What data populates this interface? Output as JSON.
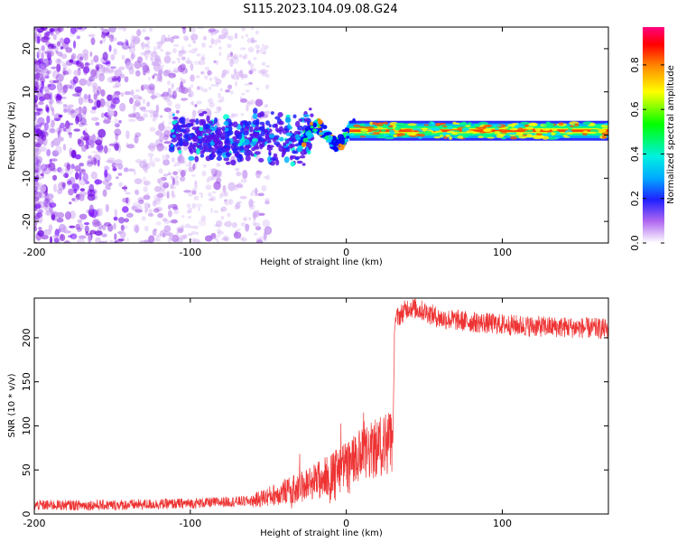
{
  "title": "S115.2023.104.09.08.G24",
  "colors": {
    "snr_line": "#ee3333",
    "axis": "#000000"
  },
  "chart_data": [
    {
      "type": "heatmap",
      "name": "spectrogram",
      "xlabel": "Height of straight line (km)",
      "ylabel": "Frequency (Hz)",
      "xlim": [
        -200,
        168
      ],
      "ylim": [
        -25,
        25
      ],
      "x_ticks": [
        -200,
        -100,
        0,
        100
      ],
      "y_ticks": [
        -20,
        -10,
        0,
        10,
        20
      ],
      "colorbar": {
        "label": "Normalized spectral amplitude",
        "range": [
          0,
          0.97
        ],
        "ticks": [
          "0.0",
          "0.2",
          "0.4",
          "0.6",
          "0.8"
        ],
        "colormap": [
          "#ffffff",
          "#9b1fe8",
          "#0000ff",
          "#00e5ff",
          "#00ff00",
          "#ffff00",
          "#ff8c00",
          "#ff0000",
          "#ff0080"
        ]
      },
      "features": {
        "noise_region": [
          -200,
          -50
        ],
        "scatter_region": [
          -110,
          -30
        ],
        "steady_signal": {
          "x_range": [
            0,
            168
          ],
          "frequency_hz": 1,
          "amplitude": 0.9
        }
      }
    },
    {
      "type": "line",
      "name": "snr",
      "xlabel": "Height of straight line (km)",
      "ylabel": "SNR (10 * v/v)",
      "xlim": [
        -200,
        168
      ],
      "ylim": [
        0,
        245
      ],
      "x_ticks": [
        -200,
        -100,
        0,
        100
      ],
      "y_ticks": [
        0,
        50,
        100,
        150,
        200
      ],
      "series": [
        {
          "x": [
            -200,
            -150,
            -100,
            -60,
            -50,
            -40,
            -30,
            -20,
            -10,
            0,
            10,
            20,
            30,
            31,
            40,
            50,
            60,
            80,
            100,
            120,
            140,
            168
          ],
          "values": [
            10,
            10,
            12,
            15,
            20,
            25,
            30,
            38,
            45,
            55,
            65,
            75,
            85,
            220,
            235,
            230,
            222,
            218,
            215,
            213,
            212,
            210
          ]
        }
      ]
    }
  ]
}
